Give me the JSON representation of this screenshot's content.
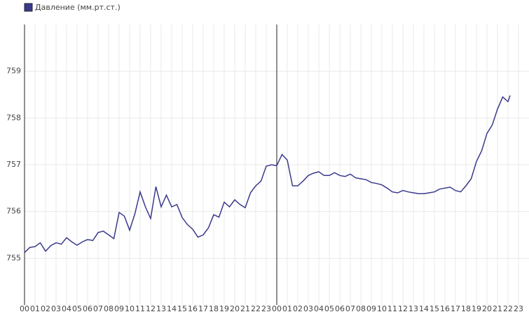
{
  "chart_data": {
    "type": "line",
    "legend": "top-left",
    "grid": true,
    "series": [
      {
        "name": "Давление (мм.рт.ст.)",
        "color": "#3a3a8c",
        "x": [
          0,
          0.5,
          1,
          1.5,
          2,
          2.5,
          3,
          3.5,
          4,
          4.5,
          5,
          5.5,
          6,
          6.5,
          7,
          7.5,
          8,
          8.5,
          9,
          9.5,
          10,
          10.5,
          11,
          11.5,
          12,
          12.5,
          13,
          13.5,
          14,
          14.5,
          15,
          15.5,
          16,
          16.5,
          17,
          17.5,
          18,
          18.5,
          19,
          19.5,
          20,
          20.5,
          21,
          21.5,
          22,
          22.5,
          23,
          23.5,
          24,
          24.5,
          25,
          25.5,
          26,
          26.5,
          27,
          27.5,
          28,
          28.5,
          29,
          29.5,
          30,
          30.5,
          31,
          31.5,
          32,
          32.5,
          33,
          33.5,
          34,
          34.5,
          35,
          35.5,
          36,
          36.5,
          37,
          37.5,
          38,
          38.5,
          39,
          39.5,
          40,
          40.5,
          41,
          41.5,
          42,
          42.5,
          43,
          43.5,
          44,
          44.5,
          45,
          45.5,
          46,
          46.2
        ],
        "values": [
          755.12,
          755.23,
          755.25,
          755.33,
          755.15,
          755.27,
          755.33,
          755.3,
          755.44,
          755.35,
          755.28,
          755.35,
          755.4,
          755.38,
          755.55,
          755.58,
          755.5,
          755.42,
          755.98,
          755.9,
          755.6,
          755.95,
          756.42,
          756.1,
          755.85,
          756.53,
          756.1,
          756.35,
          756.1,
          756.15,
          755.87,
          755.72,
          755.62,
          755.45,
          755.5,
          755.65,
          755.93,
          755.88,
          756.2,
          756.1,
          756.25,
          756.15,
          756.08,
          756.4,
          756.55,
          756.65,
          756.97,
          757.0,
          756.98,
          757.22,
          757.1,
          756.55,
          756.55,
          756.65,
          756.77,
          756.82,
          756.85,
          756.77,
          756.77,
          756.83,
          756.77,
          756.75,
          756.8,
          756.72,
          756.7,
          756.68,
          756.62,
          756.6,
          756.57,
          756.5,
          756.42,
          756.4,
          756.45,
          756.42,
          756.4,
          756.38,
          756.38,
          756.4,
          756.42,
          756.48,
          756.5,
          756.52,
          756.45,
          756.42,
          756.55,
          756.7,
          757.07,
          757.3,
          757.67,
          757.85,
          758.19,
          758.45,
          758.35,
          758.48
        ]
      }
    ],
    "xlim": [
      0,
      48
    ],
    "xticks": [
      {
        "value": 0,
        "label": "00"
      },
      {
        "value": 1,
        "label": "01"
      },
      {
        "value": 2,
        "label": "02"
      },
      {
        "value": 3,
        "label": "03"
      },
      {
        "value": 4,
        "label": "04"
      },
      {
        "value": 5,
        "label": "05"
      },
      {
        "value": 6,
        "label": "06"
      },
      {
        "value": 7,
        "label": "07"
      },
      {
        "value": 8,
        "label": "08"
      },
      {
        "value": 9,
        "label": "09"
      },
      10,
      11,
      12,
      13,
      14,
      15,
      16,
      17,
      18,
      19,
      20,
      21,
      22,
      23,
      {
        "value": 24,
        "label": "00"
      },
      {
        "value": 25,
        "label": "01"
      },
      {
        "value": 26,
        "label": "02"
      },
      {
        "value": 27,
        "label": "03"
      },
      {
        "value": 28,
        "label": "04"
      },
      {
        "value": 29,
        "label": "05"
      },
      {
        "value": 30,
        "label": "06"
      },
      {
        "value": 31,
        "label": "07"
      },
      {
        "value": 32,
        "label": "08"
      },
      {
        "value": 33,
        "label": "09"
      },
      {
        "value": 34,
        "label": "10"
      },
      {
        "value": 35,
        "label": "11"
      },
      {
        "value": 36,
        "label": "12"
      },
      {
        "value": 37,
        "label": "13"
      },
      {
        "value": 38,
        "label": "14"
      },
      {
        "value": 39,
        "label": "15"
      },
      {
        "value": 40,
        "label": "16"
      },
      {
        "value": 41,
        "label": "17"
      },
      {
        "value": 42,
        "label": "18"
      },
      {
        "value": 43,
        "label": "19"
      },
      {
        "value": 44,
        "label": "20"
      },
      {
        "value": 45,
        "label": "21"
      },
      {
        "value": 46,
        "label": "22"
      },
      {
        "value": 47,
        "label": "23"
      }
    ],
    "ylim": [
      754,
      760
    ],
    "yticks": [
      755,
      756,
      757,
      758,
      759
    ]
  }
}
